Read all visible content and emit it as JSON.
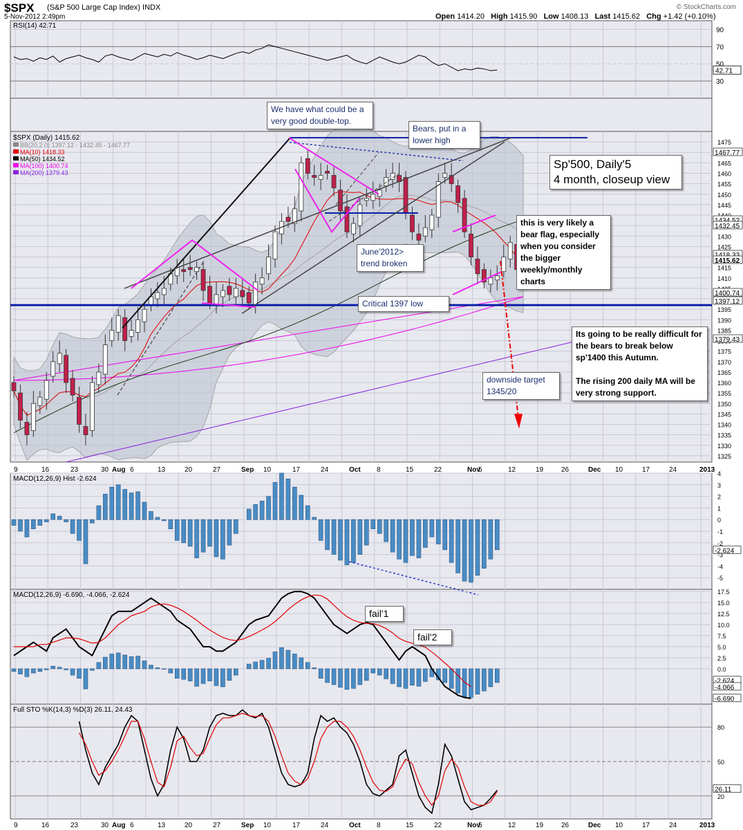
{
  "header": {
    "symbol": "$SPX",
    "name": "(S&P 500 Large Cap Index)",
    "exchange": "INDX",
    "date": "5-Nov-2012 2:49pm",
    "watermark": "© StockCharts.com",
    "open_label": "Open",
    "open": "1414.20",
    "high_label": "High",
    "high": "1415.90",
    "low_label": "Low",
    "low": "1408.13",
    "last_label": "Last",
    "last": "1415.62",
    "chg_label": "Chg",
    "chg": "+1.42 (+0.10%)"
  },
  "chart_data": [
    {
      "panel": "rsi",
      "type": "line",
      "title": "RSI(14) 42.71",
      "ylim": [
        10,
        100
      ],
      "y_ticks": [
        90,
        70,
        50,
        30
      ],
      "last_label": "42.71",
      "values": [
        58,
        55,
        56,
        53,
        57,
        55,
        59,
        52,
        56,
        58,
        60,
        57,
        55,
        52,
        59,
        61,
        58,
        56,
        54,
        58,
        62,
        60,
        58,
        61,
        59,
        63,
        60,
        58,
        55,
        57,
        60,
        58,
        56,
        59,
        62,
        64,
        62,
        66,
        68,
        72,
        70,
        68,
        66,
        64,
        62,
        60,
        58,
        56,
        54,
        56,
        58,
        60,
        55,
        52,
        50,
        54,
        58,
        55,
        52,
        50,
        52,
        56,
        60,
        58,
        52,
        48,
        50,
        46,
        42,
        44,
        43,
        45,
        44,
        42,
        42.7
      ]
    },
    {
      "panel": "price",
      "type": "candlestick",
      "title": "$SPX (Daily) 1415.62",
      "ylim": [
        1322,
        1480
      ],
      "y_ticks": [
        1475,
        1470,
        1465,
        1460,
        1455,
        1450,
        1445,
        1440,
        1435,
        1430,
        1425,
        1420,
        1415,
        1410,
        1405,
        1400,
        1395,
        1390,
        1385,
        1380,
        1375,
        1370,
        1365,
        1360,
        1355,
        1350,
        1345,
        1340,
        1335,
        1330,
        1325
      ],
      "x_labels": [
        "9",
        "16",
        "23",
        "30",
        "Aug",
        "6",
        "13",
        "20",
        "27",
        "Sep",
        "10",
        "17",
        "24",
        "Oct",
        "8",
        "15",
        "22",
        "Nov",
        "5",
        "12",
        "19",
        "26",
        "Dec",
        "10",
        "17",
        "24",
        "2013"
      ],
      "legend": [
        {
          "text": "BB(20,2.0) 1397.12 - 1432.45 - 1467.77",
          "color": "#888888"
        },
        {
          "text": "MA(10) 1418.33",
          "color": "#e00000"
        },
        {
          "text": "MA(50) 1434.52",
          "color": "#000000"
        },
        {
          "text": "MA(100) 1400.74",
          "color": "#ee00ee"
        },
        {
          "text": "MA(200) 1379.43",
          "color": "#8822dd"
        }
      ],
      "right_labels": [
        "1467.77",
        "1434.52",
        "1432.45",
        "1418.33",
        "1415.62",
        "1400.74",
        "1397.12",
        "1379.43"
      ],
      "closes": [
        1356,
        1342,
        1335,
        1350,
        1353,
        1361,
        1370,
        1374,
        1360,
        1354,
        1340,
        1335,
        1360,
        1365,
        1378,
        1385,
        1392,
        1380,
        1385,
        1390,
        1395,
        1401,
        1403,
        1405,
        1412,
        1415,
        1413,
        1414,
        1415,
        1404,
        1398,
        1402,
        1404,
        1402,
        1405,
        1401,
        1398,
        1408,
        1410,
        1420,
        1432,
        1437,
        1437,
        1443,
        1465,
        1460,
        1458,
        1459,
        1460,
        1453,
        1442,
        1432,
        1436,
        1445,
        1448,
        1450,
        1452,
        1458,
        1460,
        1456,
        1441,
        1432,
        1428,
        1434,
        1440,
        1456,
        1460,
        1455,
        1446,
        1432,
        1420,
        1412,
        1408,
        1410,
        1411,
        1420,
        1427,
        1414,
        1415.62
      ]
    },
    {
      "panel": "macd_hist",
      "type": "bar",
      "title": "MACD(12,26,9) Hist -2.624",
      "ylim": [
        -6,
        4
      ],
      "y_ticks": [
        4,
        3,
        2,
        1,
        0,
        -1,
        -2,
        -3,
        -4,
        -5
      ],
      "last_label": "-2.624",
      "values": [
        -0.5,
        -1,
        -1.5,
        -0.8,
        -0.5,
        -0.2,
        0.5,
        0.3,
        -0.2,
        -1.2,
        -1.8,
        -3.8,
        -0.3,
        1.2,
        2.2,
        2.8,
        3,
        2.6,
        2.3,
        2.4,
        1.5,
        0.7,
        0.2,
        -0.1,
        -0.8,
        -1.8,
        -2,
        -2.3,
        -3.3,
        -2.8,
        -2.3,
        -3.2,
        -3.4,
        -2.2,
        -1.2,
        0,
        0.9,
        1.3,
        1.6,
        2,
        3.2,
        4,
        3.5,
        2.8,
        2.1,
        1.2,
        0.2,
        -1.8,
        -2.6,
        -3,
        -3.5,
        -3.9,
        -3.7,
        -3,
        -2.2,
        -0.8,
        -1.2,
        -1.9,
        -2.8,
        -3.4,
        -3.7,
        -3.1,
        -3.3,
        -2.4,
        -1.5,
        -2.1,
        -2.6,
        -3.7,
        -4.6,
        -5.3,
        -5.4,
        -4.8,
        -4.2,
        -3.4,
        -2.6
      ]
    },
    {
      "panel": "macd",
      "type": "line",
      "title": "MACD(12,26,9) -6.690, -4.066, -2.624",
      "ylim": [
        -8,
        18
      ],
      "y_ticks": [
        "17.5",
        "15.0",
        "12.5",
        "10.0",
        "7.5",
        "5.0",
        "2.5",
        "0.0"
      ],
      "right_labels": [
        "-2.624",
        "-4.066",
        "-6.690"
      ],
      "series": [
        {
          "name": "MACD",
          "values": [
            3,
            4,
            5,
            6,
            5,
            4,
            7,
            8,
            9,
            7,
            5,
            4,
            3,
            6,
            9,
            12,
            13,
            13,
            13,
            14,
            15,
            16,
            15,
            14,
            13,
            11,
            10,
            9,
            7,
            5,
            5,
            4,
            4,
            5,
            6,
            8,
            10,
            11,
            11.5,
            12,
            14,
            16,
            17,
            17.5,
            17.5,
            17,
            16,
            14,
            12,
            10,
            9,
            8,
            9,
            10,
            10.5,
            10,
            8,
            6,
            4,
            2,
            4,
            5,
            4,
            3,
            0,
            -2,
            -4,
            -5,
            -6,
            -6.5,
            -6.7
          ]
        },
        {
          "name": "Signal",
          "values": [
            5,
            5,
            5,
            5,
            5.5,
            5.5,
            6,
            6.5,
            7,
            7,
            6.8,
            6.3,
            5.8,
            6,
            7,
            8.5,
            10,
            11,
            12,
            12.5,
            13,
            14,
            14.5,
            14.7,
            14.4,
            13.8,
            13,
            12,
            11,
            9.8,
            8.8,
            7.9,
            7.1,
            6.6,
            6.4,
            6.7,
            7.3,
            8,
            8.8,
            9.6,
            10.7,
            12,
            13.4,
            14.6,
            15.6,
            16.3,
            16.7,
            16.6,
            15.8,
            14.4,
            13,
            11.8,
            11,
            10.5,
            10.3,
            10.2,
            9.8,
            9.1,
            8.1,
            6.9,
            6.2,
            5.8,
            5.4,
            4.9,
            3.8,
            2.6,
            1.3,
            0,
            -1.5,
            -3,
            -4.066
          ]
        }
      ]
    },
    {
      "panel": "stochastic",
      "type": "line",
      "title": "Full STO %K(14,3) %D(3) 26.11, 24.43",
      "ylim": [
        0,
        100
      ],
      "y_ticks": [
        80,
        50,
        20
      ],
      "right_labels": [
        "26.11",
        "20"
      ],
      "series": [
        {
          "name": "%K",
          "values": [
            85,
            60,
            40,
            30,
            45,
            55,
            65,
            80,
            90,
            85,
            60,
            35,
            20,
            30,
            60,
            80,
            70,
            50,
            50,
            60,
            80,
            90,
            92,
            90,
            90,
            95,
            90,
            88,
            92,
            80,
            60,
            40,
            30,
            28,
            30,
            40,
            70,
            90,
            85,
            88,
            80,
            75,
            65,
            50,
            30,
            22,
            20,
            25,
            30,
            55,
            60,
            40,
            20,
            10,
            5,
            30,
            65,
            55,
            35,
            15,
            8,
            10,
            12,
            18,
            25
          ]
        },
        {
          "name": "%D",
          "values": [
            75,
            65,
            50,
            38,
            42,
            50,
            60,
            72,
            85,
            85,
            70,
            50,
            32,
            28,
            45,
            68,
            72,
            62,
            55,
            57,
            70,
            82,
            88,
            88,
            90,
            92,
            90,
            89,
            90,
            85,
            72,
            55,
            40,
            33,
            30,
            35,
            50,
            70,
            80,
            85,
            85,
            80,
            72,
            60,
            45,
            32,
            25,
            24,
            28,
            42,
            52,
            48,
            32,
            20,
            12,
            20,
            42,
            52,
            45,
            28,
            15,
            12,
            12,
            15,
            24
          ]
        }
      ]
    }
  ],
  "annotations": {
    "double_top": "We have what could be a very good double-top.",
    "bears_lower_high": "Bears, put in a lower high",
    "title_box": "Sp'500, Daily'5\n4 month, closeup view",
    "bear_flag": "this is very likely a bear flag, especially when you consider the bigger weekly/monthly charts",
    "june_trend": "June'2012>\ntrend broken",
    "critical_low": "Critical 1397 low",
    "difficult": "Its going to be really difficult for the bears to break below sp'1400 this Autumn.\n\nThe rising 200 daily MA will be very strong support.",
    "downside_target": "downside target\n1345/20",
    "fail1": "fail'1",
    "fail2": "fail'2"
  }
}
